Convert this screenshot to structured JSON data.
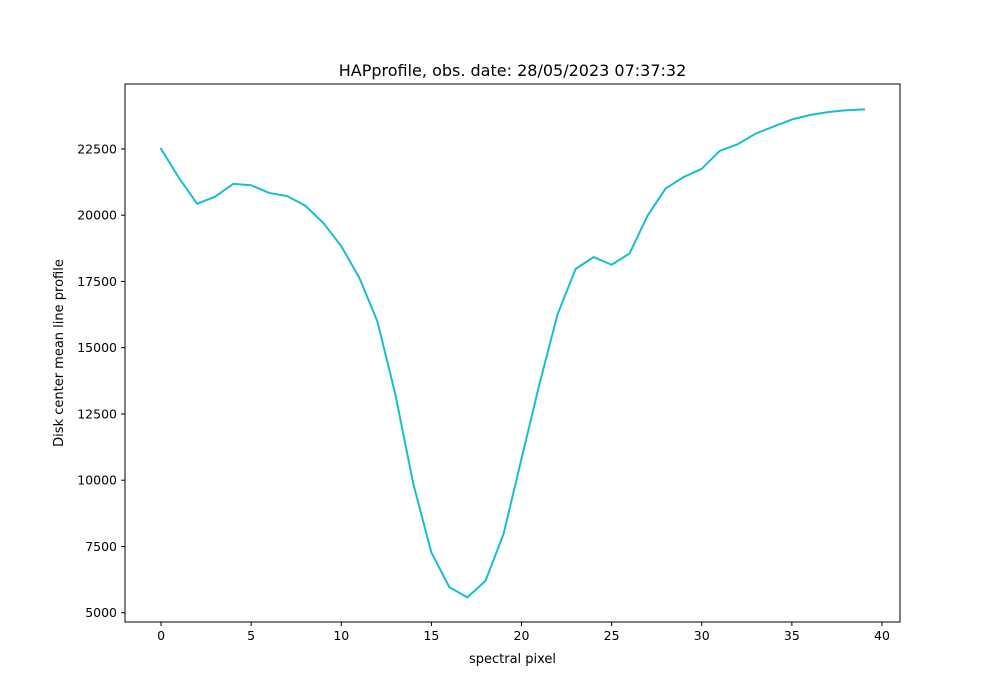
{
  "chart_data": {
    "type": "line",
    "title": "HAPprofile, obs. date: 28/05/2023 07:37:32",
    "xlabel": "spectral pixel",
    "ylabel": "Disk center mean line profile",
    "xlim": [
      -2,
      41
    ],
    "ylim": [
      4650,
      24950
    ],
    "x_ticks": [
      0,
      5,
      10,
      15,
      20,
      25,
      30,
      35,
      40
    ],
    "y_ticks": [
      5000,
      7500,
      10000,
      12500,
      15000,
      17500,
      20000,
      22500
    ],
    "grid": false,
    "series": [
      {
        "color": "#17becf",
        "x": [
          0,
          1,
          2,
          3,
          4,
          5,
          6,
          7,
          8,
          9,
          10,
          11,
          12,
          13,
          14,
          15,
          16,
          17,
          18,
          19,
          20,
          21,
          22,
          23,
          24,
          25,
          26,
          27,
          28,
          29,
          30,
          31,
          32,
          33,
          34,
          35,
          36,
          37,
          38,
          39
        ],
        "values": [
          22500,
          21400,
          20430,
          20700,
          21180,
          21130,
          20840,
          20720,
          20360,
          19710,
          18830,
          17640,
          16000,
          13240,
          9850,
          7270,
          5960,
          5580,
          6200,
          7960,
          10810,
          13640,
          16260,
          17970,
          18420,
          18130,
          18560,
          19990,
          21010,
          21440,
          21750,
          22430,
          22680,
          23080,
          23350,
          23610,
          23780,
          23890,
          23960,
          23990
        ]
      }
    ]
  }
}
